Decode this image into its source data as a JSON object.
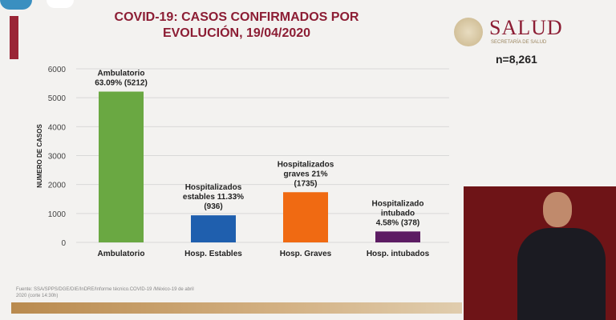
{
  "header": {
    "title_line1": "COVID-19: CASOS CONFIRMADOS POR",
    "title_line2": "EVOLUCIÓN, 19/04/2020",
    "logo_text": "SALUD",
    "logo_sub": "SECRETARÍA DE SALUD",
    "n_label": "n=8,261"
  },
  "footnote_line1": "Fuente: SSA/SPPS/DGE/DIE/InDRE/Informe técnico.COVID-19 /México-19 de abril",
  "footnote_line2": "2020 (corte 14:30h)",
  "chart_data": {
    "type": "bar",
    "title": "COVID-19: CASOS CONFIRMADOS POR EVOLUCIÓN, 19/04/2020",
    "ylabel": "NUMERO DE CASOS",
    "xlabel": "",
    "ylim": [
      0,
      6000
    ],
    "yticks": [
      0,
      1000,
      2000,
      3000,
      4000,
      5000,
      6000
    ],
    "grid": true,
    "categories": [
      "Ambulatorio",
      "Hosp. Estables",
      "Hosp. Graves",
      "Hosp. intubados"
    ],
    "values": [
      5212,
      936,
      1735,
      378
    ],
    "colors": [
      "#6aa842",
      "#1f5fae",
      "#f06a12",
      "#5c1c63"
    ],
    "data_labels": [
      [
        "Ambulatorio",
        "63.09% (5212)"
      ],
      [
        "Hospitalizados",
        "estables 11.33%",
        "(936)"
      ],
      [
        "Hospitalizados",
        "graves 21%",
        "(1735)"
      ],
      [
        "Hospitalizado",
        "intubado",
        "4.58% (378)"
      ]
    ]
  }
}
